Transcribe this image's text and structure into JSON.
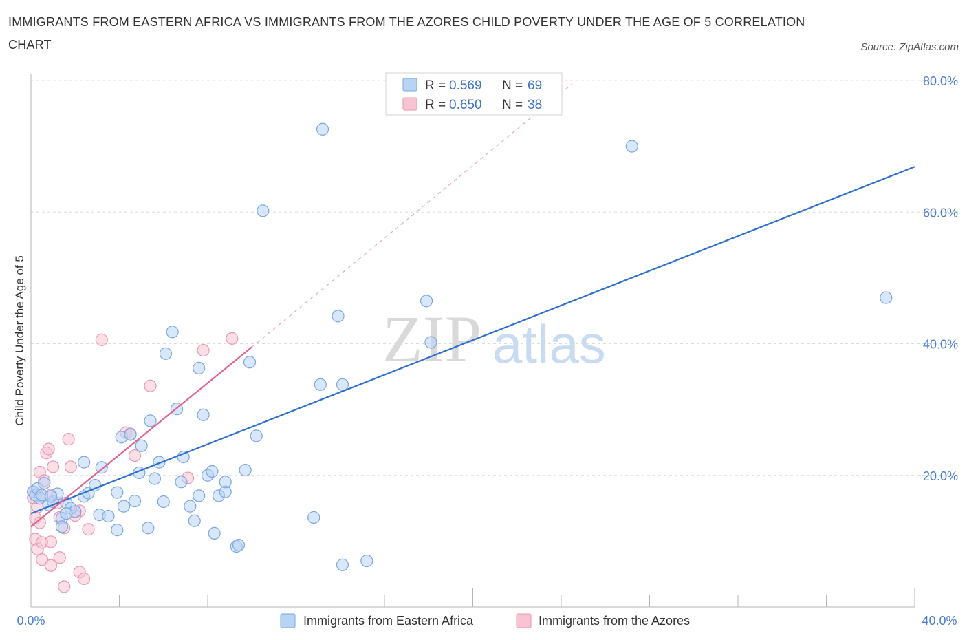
{
  "header": {
    "title": "IMMIGRANTS FROM EASTERN AFRICA VS IMMIGRANTS FROM THE AZORES CHILD POVERTY UNDER THE AGE OF 5 CORRELATION CHART",
    "source": "Source: ZipAtlas.com"
  },
  "watermark": {
    "zip": "ZIP",
    "atlas": "atlas"
  },
  "legend": {
    "r_label": "R =",
    "n_label": "N =",
    "rows": [
      {
        "r": "0.569",
        "n": "69"
      },
      {
        "r": "0.650",
        "n": "38"
      }
    ]
  },
  "colors": {
    "blue_fill": "#b8d4f5",
    "blue_stroke": "#7aa7e0",
    "blue_line": "#2e6fcc",
    "pink_fill": "#f8c4d4",
    "pink_stroke": "#eb97b2",
    "pink_line": "#e0648e",
    "grid": "#dcdcdc",
    "tick_label": "#4a7fcf"
  },
  "chart_data": {
    "type": "scatter",
    "title": "IMMIGRANTS FROM EASTERN AFRICA VS IMMIGRANTS FROM THE AZORES CHILD POVERTY UNDER THE AGE OF 5 CORRELATION CHART",
    "xlabel": "",
    "ylabel": "Child Poverty Under the Age of 5",
    "xlim": [
      0,
      40
    ],
    "ylim": [
      0,
      80
    ],
    "x_tick_labels": [
      "0.0%",
      "40.0%"
    ],
    "y_ticks": [
      20,
      40,
      60,
      80
    ],
    "y_tick_labels": [
      "20.0%",
      "40.0%",
      "60.0%",
      "80.0%"
    ],
    "grid": true,
    "series": [
      {
        "name": "Immigrants from Eastern Africa",
        "color": "blue",
        "R": 0.569,
        "N": 69,
        "trend": {
          "x": [
            0,
            40
          ],
          "y": [
            14.2,
            66.9
          ]
        },
        "points": [
          [
            0.1,
            17.5
          ],
          [
            0.2,
            17.0
          ],
          [
            0.3,
            18.0
          ],
          [
            0.4,
            16.5
          ],
          [
            0.5,
            17.0
          ],
          [
            0.6,
            18.8
          ],
          [
            0.8,
            15.5
          ],
          [
            1.0,
            16.0
          ],
          [
            1.2,
            17.2
          ],
          [
            1.4,
            13.5
          ],
          [
            1.6,
            15.8
          ],
          [
            1.8,
            15.0
          ],
          [
            1.4,
            12.2
          ],
          [
            2.0,
            14.5
          ],
          [
            2.4,
            16.8
          ],
          [
            2.6,
            17.3
          ],
          [
            2.9,
            18.5
          ],
          [
            3.2,
            21.2
          ],
          [
            2.4,
            22.0
          ],
          [
            3.1,
            14.0
          ],
          [
            3.5,
            13.8
          ],
          [
            3.9,
            17.4
          ],
          [
            4.2,
            15.3
          ],
          [
            4.7,
            16.1
          ],
          [
            3.9,
            11.7
          ],
          [
            5.3,
            12.0
          ],
          [
            4.1,
            25.8
          ],
          [
            4.5,
            26.2
          ],
          [
            5.0,
            24.5
          ],
          [
            4.9,
            20.4
          ],
          [
            5.6,
            19.5
          ],
          [
            5.4,
            28.3
          ],
          [
            6.1,
            38.5
          ],
          [
            6.4,
            41.8
          ],
          [
            6.6,
            30.1
          ],
          [
            6.9,
            22.8
          ],
          [
            7.2,
            15.3
          ],
          [
            7.4,
            13.1
          ],
          [
            7.6,
            16.9
          ],
          [
            7.6,
            36.3
          ],
          [
            7.8,
            29.2
          ],
          [
            8.0,
            20.0
          ],
          [
            8.2,
            20.6
          ],
          [
            8.3,
            11.2
          ],
          [
            8.5,
            16.9
          ],
          [
            8.8,
            17.5
          ],
          [
            8.8,
            19.0
          ],
          [
            9.3,
            9.2
          ],
          [
            9.4,
            9.4
          ],
          [
            9.7,
            20.8
          ],
          [
            9.9,
            37.2
          ],
          [
            10.2,
            26.0
          ],
          [
            10.5,
            60.2
          ],
          [
            12.8,
            13.6
          ],
          [
            13.1,
            33.8
          ],
          [
            13.2,
            72.6
          ],
          [
            13.9,
            44.2
          ],
          [
            14.1,
            33.8
          ],
          [
            14.1,
            6.4
          ],
          [
            15.2,
            7.0
          ],
          [
            17.9,
            46.5
          ],
          [
            18.1,
            40.2
          ],
          [
            5.8,
            22.0
          ],
          [
            6.8,
            19.0
          ],
          [
            1.6,
            14.2
          ],
          [
            0.9,
            16.8
          ],
          [
            27.2,
            70.0
          ],
          [
            38.7,
            47.0
          ],
          [
            6.0,
            16.0
          ]
        ]
      },
      {
        "name": "Immigrants from the Azores",
        "color": "pink",
        "R": 0.65,
        "N": 38,
        "trend": {
          "x": [
            0,
            10
          ],
          "y": [
            12.2,
            39.5
          ]
        },
        "trend_extension": {
          "x": [
            10,
            24.5
          ],
          "y": [
            39.5,
            79.5
          ]
        },
        "points": [
          [
            0.1,
            17.5
          ],
          [
            0.2,
            13.5
          ],
          [
            0.3,
            15.2
          ],
          [
            0.4,
            20.5
          ],
          [
            0.5,
            16.8
          ],
          [
            0.6,
            19.2
          ],
          [
            0.7,
            23.4
          ],
          [
            0.8,
            24.0
          ],
          [
            0.9,
            17.0
          ],
          [
            1.0,
            21.3
          ],
          [
            1.3,
            13.6
          ],
          [
            1.5,
            12.0
          ],
          [
            1.7,
            25.5
          ],
          [
            1.8,
            21.3
          ],
          [
            2.2,
            14.6
          ],
          [
            2.6,
            11.8
          ],
          [
            3.2,
            40.6
          ],
          [
            4.3,
            26.5
          ],
          [
            4.5,
            26.3
          ],
          [
            4.7,
            23.0
          ],
          [
            5.4,
            33.6
          ],
          [
            7.1,
            19.6
          ],
          [
            7.8,
            39.0
          ],
          [
            9.1,
            40.8
          ],
          [
            0.2,
            10.3
          ],
          [
            0.3,
            8.8
          ],
          [
            0.5,
            7.2
          ],
          [
            0.5,
            9.8
          ],
          [
            0.9,
            6.3
          ],
          [
            0.9,
            9.9
          ],
          [
            1.3,
            7.5
          ],
          [
            2.2,
            5.3
          ],
          [
            1.5,
            3.1
          ],
          [
            2.4,
            4.3
          ],
          [
            0.1,
            16.6
          ],
          [
            0.4,
            12.8
          ],
          [
            1.2,
            15.8
          ],
          [
            2.0,
            13.9
          ]
        ]
      }
    ]
  },
  "bottom_legend": {
    "items": [
      {
        "label": "Immigrants from Eastern Africa"
      },
      {
        "label": "Immigrants from the Azores"
      }
    ]
  }
}
